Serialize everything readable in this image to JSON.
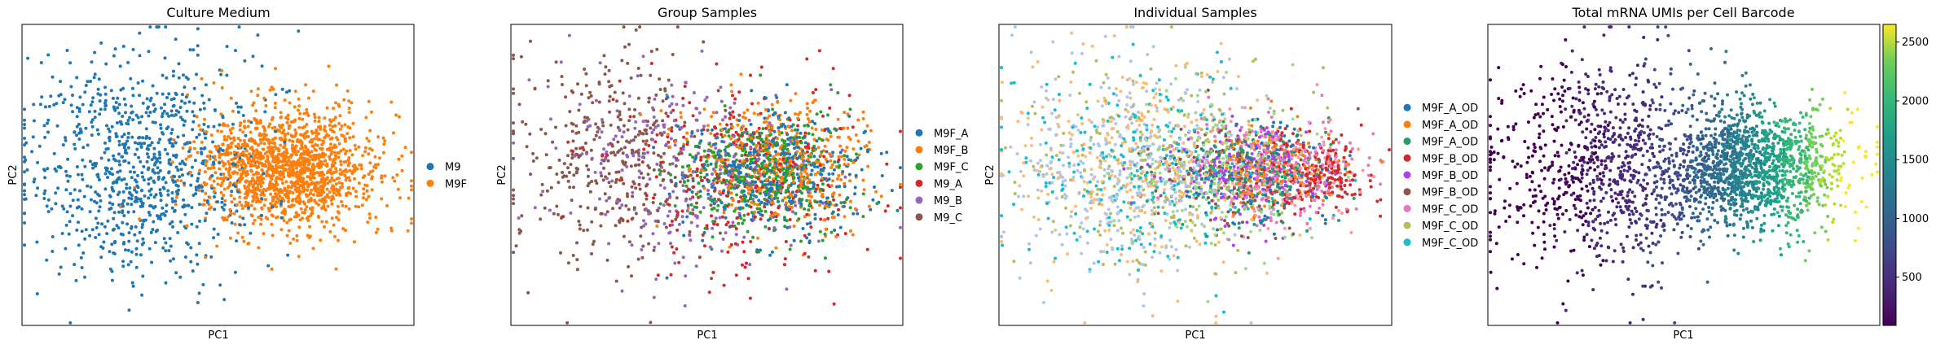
{
  "chart_data": [
    {
      "type": "scatter",
      "title": "Culture Medium",
      "xlabel": "PC1",
      "ylabel": "PC2",
      "grid": false,
      "legend_placement": "right, outside",
      "x_range": [
        -4,
        4
      ],
      "y_range": [
        -3,
        3
      ],
      "series": [
        {
          "name": "M9",
          "color": "#1f77b4",
          "center": [
            -1.6,
            0.2
          ],
          "spread": [
            1.2,
            1.1
          ],
          "n": 900
        },
        {
          "name": "M9F",
          "color": "#ff7f0e",
          "center": [
            1.4,
            0.1
          ],
          "spread": [
            0.9,
            0.6
          ],
          "n": 1500
        }
      ]
    },
    {
      "type": "scatter",
      "title": "Group Samples",
      "xlabel": "PC1",
      "ylabel": "PC2",
      "grid": false,
      "legend_placement": "right, outside",
      "x_range": [
        -4,
        4
      ],
      "y_range": [
        -3,
        3
      ],
      "series": [
        {
          "name": "M9F_A",
          "color": "#1f77b4",
          "center": [
            1.4,
            0.1
          ],
          "spread": [
            0.9,
            0.6
          ],
          "n": 450
        },
        {
          "name": "M9F_B",
          "color": "#ff7f0e",
          "center": [
            1.6,
            0.2
          ],
          "spread": [
            0.9,
            0.6
          ],
          "n": 450
        },
        {
          "name": "M9F_C",
          "color": "#2ca02c",
          "center": [
            1.2,
            0.0
          ],
          "spread": [
            0.9,
            0.6
          ],
          "n": 400
        },
        {
          "name": "M9_A",
          "color": "#d62728",
          "center": [
            0.6,
            -0.1
          ],
          "spread": [
            1.3,
            1.0
          ],
          "n": 300
        },
        {
          "name": "M9_B",
          "color": "#9467bd",
          "center": [
            -0.4,
            0.1
          ],
          "spread": [
            1.3,
            1.0
          ],
          "n": 300
        },
        {
          "name": "M9_C",
          "color": "#8c564b",
          "center": [
            -1.8,
            0.3
          ],
          "spread": [
            1.1,
            1.1
          ],
          "n": 400
        }
      ]
    },
    {
      "type": "scatter",
      "title": "Individual Samples",
      "xlabel": "PC1",
      "ylabel": "PC2",
      "grid": false,
      "legend_placement": "right, outside",
      "x_range": [
        -4,
        4
      ],
      "y_range": [
        -3,
        3
      ],
      "series": [
        {
          "name": "M9F_A_OD",
          "color": "#1f77b4",
          "center": [
            1.2,
            0.1
          ],
          "spread": [
            0.8,
            0.5
          ],
          "n": 150
        },
        {
          "name": "M9F_A_OD",
          "color": "#ff7f0e",
          "center": [
            1.6,
            0.1
          ],
          "spread": [
            0.8,
            0.5
          ],
          "n": 150
        },
        {
          "name": "M9F_A_OD",
          "color": "#279e68",
          "center": [
            1.3,
            0.0
          ],
          "spread": [
            0.8,
            0.5
          ],
          "n": 150
        },
        {
          "name": "M9F_B_OD",
          "color": "#d62728",
          "center": [
            2.4,
            0.0
          ],
          "spread": [
            0.6,
            0.4
          ],
          "n": 200
        },
        {
          "name": "M9F_B_OD",
          "color": "#aa40fc",
          "center": [
            1.0,
            0.1
          ],
          "spread": [
            0.8,
            0.5
          ],
          "n": 150
        },
        {
          "name": "M9F_B_OD",
          "color": "#8c564b",
          "center": [
            0.8,
            0.0
          ],
          "spread": [
            0.9,
            0.6
          ],
          "n": 150
        },
        {
          "name": "M9F_C_OD",
          "color": "#e377c2",
          "center": [
            1.5,
            0.1
          ],
          "spread": [
            0.9,
            0.5
          ],
          "n": 250
        },
        {
          "name": "M9F_C_OD",
          "color": "#b5bd61",
          "center": [
            -0.5,
            0.2
          ],
          "spread": [
            1.4,
            1.0
          ],
          "n": 250
        },
        {
          "name": "M9F_C_OD",
          "color": "#17becf",
          "center": [
            -1.0,
            0.2
          ],
          "spread": [
            1.4,
            1.0
          ],
          "n": 250
        },
        {
          "name": "",
          "color": "#aec7e8",
          "center": [
            -1.4,
            0.2
          ],
          "spread": [
            1.3,
            1.1
          ],
          "n": 350
        },
        {
          "name": "",
          "color": "#ffbb78",
          "center": [
            -1.2,
            0.1
          ],
          "spread": [
            1.2,
            1.1
          ],
          "n": 300
        },
        {
          "name": "",
          "color": "#98df8a",
          "center": [
            0.4,
            0.0
          ],
          "spread": [
            1.0,
            0.8
          ],
          "n": 150
        },
        {
          "name": "",
          "color": "#ff9896",
          "center": [
            1.8,
            0.0
          ],
          "spread": [
            0.8,
            0.5
          ],
          "n": 150
        }
      ]
    },
    {
      "type": "scatter",
      "title": "Total mRNA UMIs per Cell Barcode",
      "xlabel": "PC1",
      "ylabel": "PC2",
      "grid": false,
      "x_range": [
        -4,
        4
      ],
      "y_range": [
        -3,
        3
      ],
      "colorbar": {
        "colormap": "viridis",
        "range": [
          90,
          2650
        ],
        "ticks": [
          500,
          1000,
          1500,
          2000,
          2500
        ]
      },
      "series": [
        {
          "name": "",
          "center": [
            -1.6,
            0.2
          ],
          "spread": [
            1.2,
            1.1
          ],
          "n": 900
        },
        {
          "name": "",
          "center": [
            1.4,
            0.1
          ],
          "spread": [
            0.9,
            0.6
          ],
          "n": 1500
        }
      ]
    }
  ]
}
